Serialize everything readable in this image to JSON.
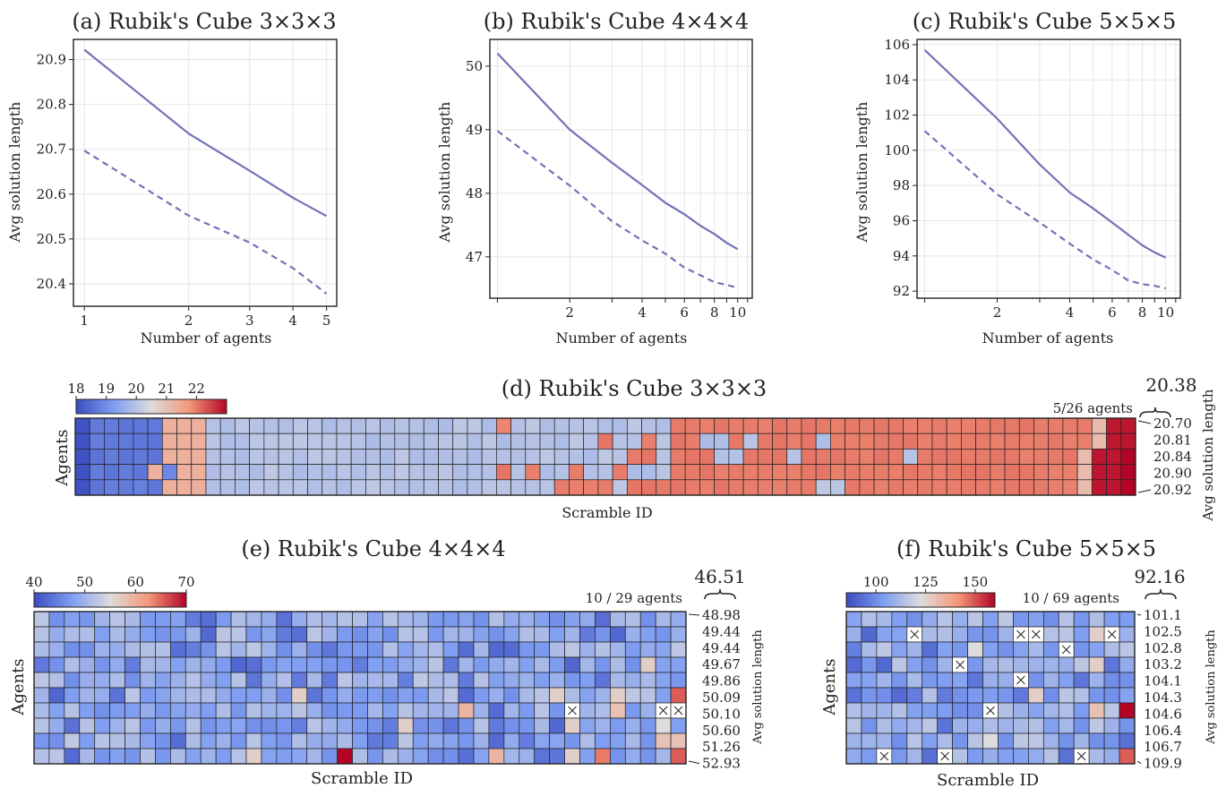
{
  "chart_data": [
    {
      "type": "line",
      "title": "(a) Rubik's Cube 3×3×3",
      "xlabel": "Number of agents",
      "ylabel": "Avg solution length",
      "xscale": "log",
      "x_ticks": [
        "1",
        "2",
        "3",
        "4",
        "5"
      ],
      "xlim": [
        0.93,
        5.35
      ],
      "ylim": [
        20.35,
        20.945
      ],
      "y_ticks": [
        "20.4",
        "20.5",
        "20.6",
        "20.7",
        "20.8",
        "20.9"
      ],
      "grid": true,
      "color": "#7272b8",
      "series": [
        {
          "style": "solid",
          "x": [
            1,
            2,
            3,
            4,
            5
          ],
          "y": [
            20.922,
            20.735,
            20.652,
            20.592,
            20.551
          ]
        },
        {
          "style": "dashed",
          "x": [
            1,
            2,
            3,
            4,
            5
          ],
          "y": [
            20.697,
            20.552,
            20.492,
            20.435,
            20.378
          ]
        }
      ]
    },
    {
      "type": "line",
      "title": "(b) Rubik's Cube 4×4×4",
      "xlabel": "Number of agents",
      "ylabel": "Avg solution length",
      "xscale": "log",
      "x_ticks": [
        "2",
        "4",
        "6",
        "8",
        "10"
      ],
      "xlim": [
        0.93,
        11.5
      ],
      "ylim": [
        46.35,
        50.42
      ],
      "y_ticks": [
        "47",
        "48",
        "49",
        "50"
      ],
      "grid": true,
      "color": "#7272b8",
      "series": [
        {
          "style": "solid",
          "x": [
            1,
            2,
            3,
            4,
            5,
            6,
            7,
            8,
            9,
            10
          ],
          "y": [
            50.2,
            49.0,
            48.48,
            48.13,
            47.85,
            47.67,
            47.49,
            47.36,
            47.22,
            47.12
          ]
        },
        {
          "style": "dashed",
          "x": [
            1,
            2,
            3,
            4,
            5,
            6,
            7,
            8,
            9,
            10
          ],
          "y": [
            48.98,
            48.12,
            47.56,
            47.26,
            47.05,
            46.83,
            46.71,
            46.6,
            46.56,
            46.51
          ]
        }
      ]
    },
    {
      "type": "line",
      "title": "(c) Rubik's Cube 5×5×5",
      "xlabel": "Number of agents",
      "ylabel": "Avg solution length",
      "xscale": "log",
      "x_ticks": [
        "2",
        "4",
        "6",
        "8",
        "10"
      ],
      "xlim": [
        0.93,
        11.5
      ],
      "ylim": [
        91.6,
        106.3
      ],
      "y_ticks": [
        "92",
        "94",
        "96",
        "98",
        "100",
        "102",
        "104",
        "106"
      ],
      "grid": true,
      "color": "#7272b8",
      "series": [
        {
          "style": "solid",
          "x": [
            1,
            2,
            3,
            4,
            5,
            6,
            7,
            8,
            9,
            10
          ],
          "y": [
            105.7,
            101.8,
            99.2,
            97.6,
            96.7,
            95.9,
            95.2,
            94.6,
            94.2,
            93.9
          ]
        },
        {
          "style": "dashed",
          "x": [
            1,
            2,
            3,
            4,
            5,
            6,
            7,
            8,
            9,
            10
          ],
          "y": [
            101.1,
            97.5,
            95.9,
            94.7,
            93.8,
            93.2,
            92.6,
            92.4,
            92.3,
            92.16
          ]
        }
      ]
    },
    {
      "type": "heatmap",
      "title": "(d) Rubik's Cube 3×3×3",
      "xlabel": "Scramble ID",
      "ylabel": "Agents",
      "right_label": "Avg solution length",
      "agents_note": "5/26 agents",
      "bracket_value": "20.38",
      "row_values": [
        "20.70",
        "20.81",
        "20.84",
        "20.90",
        "20.92"
      ],
      "colorbar": {
        "min": 18,
        "max": 23,
        "ticks": [
          "18",
          "19",
          "20",
          "21",
          "22"
        ]
      },
      "cols": 70,
      "row_pattern": [
        "AAAAAAEEEWWWWWWWWWWWWWWWWWWWWFWWWWWWWWWWWRRRRRRRRRRRRRRRRRRRRRRRRRRRRRPQQ",
        "AAAAAAEEEWWWWWWWWWWWWWWWWWWWWWWWWWWWRWWRWRRWWRWRRRRWRRRRRRRRRRRRRRRRRRPQQ",
        "AAAAAAEEEWWWWWWWWWWWWWWWWWWWWWWWWWWWWWRRWRRRWWRRRWRRRRRRRWRRRRRRRRRRRPQQ",
        "AAAAAEBEEWWWWWWWWWWWWWWWWWWWWRWRWWRWWRWWWRRRRRRRRRRRRRRRRRRRRRRRRRRRRPQQ",
        "AAAAAAEEEWWWWWWWWWWWWWWWWWWWWWWWWRRRRWRRRRRRRRRRRRRWWRRRRRRRRRRRRRRRRPQQ"
      ]
    },
    {
      "type": "heatmap",
      "title": "(e) Rubik's Cube 4×4×4",
      "xlabel": "Scramble ID",
      "ylabel": "Agents",
      "right_label": "Avg solution length",
      "agents_note": "10 / 29 agents",
      "bracket_value": "46.51",
      "row_values": [
        "48.98",
        "49.44",
        "49.44",
        "49.67",
        "49.86",
        "50.09",
        "50.10",
        "50.60",
        "51.26",
        "52.93"
      ],
      "colorbar": {
        "min": 40,
        "max": 70,
        "ticks": [
          "40",
          "50",
          "60",
          "70"
        ]
      },
      "cols": 43,
      "missing_cells": [
        [
          6,
          35
        ],
        [
          6,
          41
        ],
        [
          6,
          42
        ]
      ],
      "hot_cells": [
        [
          5,
          34,
          0.55
        ],
        [
          5,
          38,
          0.55
        ],
        [
          5,
          42,
          0.85
        ],
        [
          6,
          28,
          0.65
        ],
        [
          6,
          38,
          0.6
        ],
        [
          7,
          24,
          0.55
        ],
        [
          7,
          35,
          0.55
        ],
        [
          7,
          41,
          0.5
        ],
        [
          8,
          41,
          0.6
        ],
        [
          8,
          42,
          0.6
        ],
        [
          9,
          20,
          1.0
        ],
        [
          9,
          30,
          0.65
        ],
        [
          9,
          35,
          0.55
        ],
        [
          9,
          37,
          0.8
        ],
        [
          9,
          42,
          0.85
        ],
        [
          3,
          40,
          0.55
        ],
        [
          5,
          17,
          0.55
        ],
        [
          9,
          14,
          0.55
        ]
      ]
    },
    {
      "type": "heatmap",
      "title": "(f) Rubik's Cube 5×5×5",
      "xlabel": "Scramble ID",
      "ylabel": "Agents",
      "right_label": "Avg solution length",
      "agents_note": "10 / 69 agents",
      "bracket_value": "92.16",
      "row_values": [
        "101.1",
        "102.5",
        "102.8",
        "103.2",
        "104.1",
        "104.3",
        "104.6",
        "106.4",
        "106.7",
        "109.9"
      ],
      "colorbar": {
        "min": 85,
        "max": 160,
        "ticks": [
          "100",
          "125",
          "150"
        ]
      },
      "cols": 19,
      "missing_cells": [
        [
          1,
          4
        ],
        [
          1,
          11
        ],
        [
          1,
          12
        ],
        [
          1,
          17
        ],
        [
          2,
          14
        ],
        [
          3,
          7
        ],
        [
          4,
          11
        ],
        [
          6,
          9
        ],
        [
          9,
          2
        ],
        [
          9,
          6
        ],
        [
          9,
          15
        ]
      ],
      "hot_cells": [
        [
          6,
          18,
          1.0
        ],
        [
          9,
          18,
          0.85
        ],
        [
          1,
          16,
          0.55
        ],
        [
          3,
          16,
          0.55
        ],
        [
          5,
          12,
          0.55
        ],
        [
          6,
          16,
          0.6
        ],
        [
          2,
          8,
          0.5
        ],
        [
          8,
          9,
          0.5
        ]
      ]
    }
  ]
}
